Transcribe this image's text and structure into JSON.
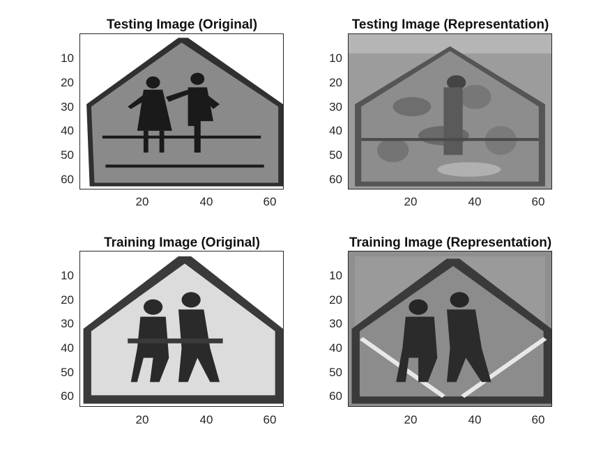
{
  "figure": {
    "panels": [
      {
        "id": "testing-original",
        "title": "Testing Image (Original)",
        "variant": "gray-sign-sharp",
        "yticks": [
          "10",
          "20",
          "30",
          "40",
          "50",
          "60"
        ],
        "xticks": [
          "20",
          "40",
          "60"
        ]
      },
      {
        "id": "testing-representation",
        "title": "Testing Image (Representation)",
        "variant": "noisy-reconstruction",
        "yticks": [
          "10",
          "20",
          "30",
          "40",
          "50",
          "60"
        ],
        "xticks": [
          "20",
          "40",
          "60"
        ]
      },
      {
        "id": "training-original",
        "title": "Training Image (Original)",
        "variant": "light-sign-blurred",
        "yticks": [
          "10",
          "20",
          "30",
          "40",
          "50",
          "60"
        ],
        "xticks": [
          "20",
          "40",
          "60"
        ]
      },
      {
        "id": "training-representation",
        "title": "Training Image (Representation)",
        "variant": "smooth-reconstruction",
        "yticks": [
          "10",
          "20",
          "30",
          "40",
          "50",
          "60"
        ],
        "xticks": [
          "20",
          "40",
          "60"
        ]
      }
    ]
  }
}
